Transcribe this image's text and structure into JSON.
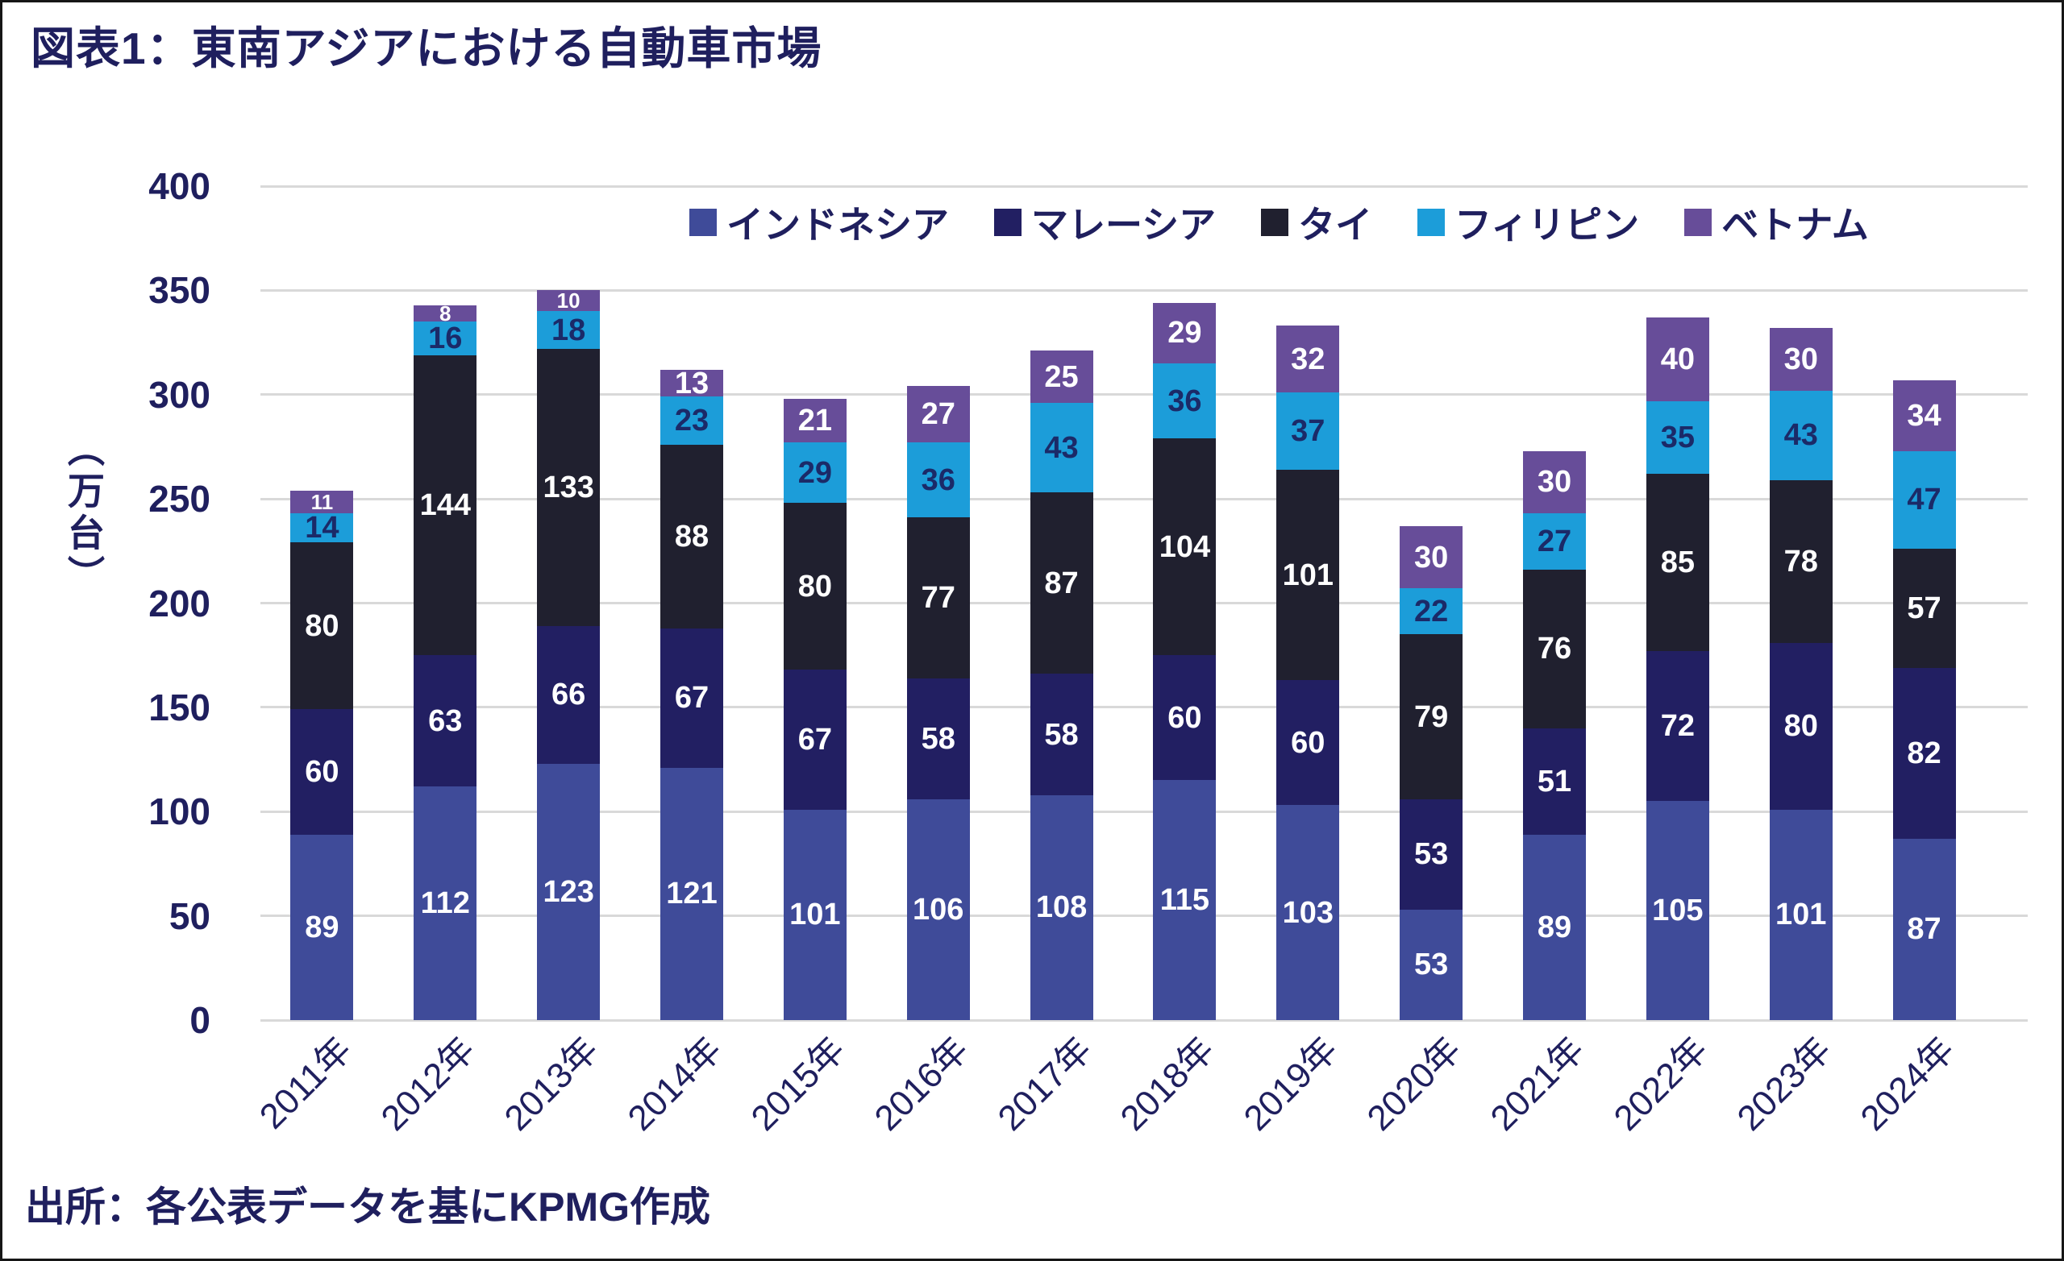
{
  "title": "図表1：東南アジアにおける自動車市場",
  "source": "出所：各公表データを基にKPMG作成",
  "colors": {
    "text_navy": "#1F1F5E",
    "gridline": "#D9D9D9",
    "background": "#FFFFFF",
    "border": "#161616"
  },
  "chart_data": {
    "type": "bar",
    "stacked": true,
    "title": "図表1：東南アジアにおける自動車市場",
    "ylabel": "（万台）",
    "ylim": [
      0,
      400
    ],
    "ytick_step": 50,
    "ytick_labels": [
      "0",
      "50",
      "100",
      "150",
      "200",
      "250",
      "300",
      "350",
      "400"
    ],
    "grid": true,
    "legend_position": "top-inside",
    "categories": [
      "2011年",
      "2012年",
      "2013年",
      "2014年",
      "2015年",
      "2016年",
      "2017年",
      "2018年",
      "2019年",
      "2020年",
      "2021年",
      "2022年",
      "2023年",
      "2024年"
    ],
    "series": [
      {
        "name": "インドネシア",
        "color": "#3F4B99",
        "label_color": "#FFFFFF",
        "values": [
          89,
          112,
          123,
          121,
          101,
          106,
          108,
          115,
          103,
          53,
          89,
          105,
          101,
          87
        ]
      },
      {
        "name": "マレーシア",
        "color": "#221F62",
        "label_color": "#FFFFFF",
        "values": [
          60,
          63,
          66,
          67,
          67,
          58,
          58,
          60,
          60,
          53,
          51,
          72,
          80,
          82
        ]
      },
      {
        "name": "タイ",
        "color": "#20202F",
        "label_color": "#FFFFFF",
        "values": [
          80,
          144,
          133,
          88,
          80,
          77,
          87,
          104,
          101,
          79,
          76,
          85,
          78,
          57
        ]
      },
      {
        "name": "フィリピン",
        "color": "#1C9DD9",
        "label_color": "#1B2A68",
        "values": [
          14,
          16,
          18,
          23,
          29,
          36,
          43,
          36,
          37,
          22,
          27,
          35,
          43,
          47
        ]
      },
      {
        "name": "ベトナム",
        "color": "#674D99",
        "label_color": "#FFFFFF",
        "values": [
          11,
          8,
          10,
          13,
          21,
          27,
          25,
          29,
          32,
          30,
          30,
          40,
          30,
          34
        ]
      }
    ]
  }
}
